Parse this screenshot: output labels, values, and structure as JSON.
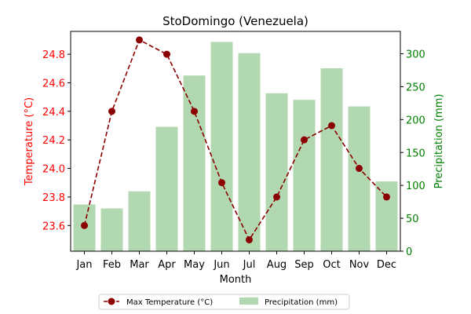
{
  "chart_data": {
    "type": "bar+line",
    "title": "StoDomingo (Venezuela)",
    "xlabel": "Month",
    "categories": [
      "Jan",
      "Feb",
      "Mar",
      "Apr",
      "May",
      "Jun",
      "Jul",
      "Aug",
      "Sep",
      "Oct",
      "Nov",
      "Dec"
    ],
    "temperature": {
      "name": "Max Temperature (°C)",
      "axis_label": "Temperature (°C)",
      "values": [
        23.6,
        24.4,
        24.9,
        24.8,
        24.4,
        23.9,
        23.5,
        23.8,
        24.2,
        24.3,
        24.0,
        23.8
      ],
      "ylim": [
        23.42,
        24.96
      ],
      "ticks": [
        23.6,
        23.8,
        24.0,
        24.2,
        24.4,
        24.6,
        24.8
      ],
      "tick_labels": [
        "23.6",
        "23.8",
        "24.0",
        "24.2",
        "24.4",
        "24.6",
        "24.8"
      ],
      "axis_color": "#ff0000",
      "line_color": "#8b0000"
    },
    "precipitation": {
      "name": "Precipitation (mm)",
      "axis_label": "Precipitation (mm)",
      "values": [
        71,
        65,
        91,
        189,
        267,
        318,
        301,
        240,
        230,
        278,
        220,
        106
      ],
      "ylim": [
        0,
        334
      ],
      "ticks": [
        0,
        50,
        100,
        150,
        200,
        250,
        300
      ],
      "tick_labels": [
        "0",
        "50",
        "100",
        "150",
        "200",
        "250",
        "300"
      ],
      "axis_color": "#008000",
      "bar_color": "#b2d8b2"
    },
    "legend": {
      "placement": "bottom-center",
      "entries": [
        "Max Temperature (°C)",
        "Precipitation (mm)"
      ]
    },
    "grid": false
  }
}
